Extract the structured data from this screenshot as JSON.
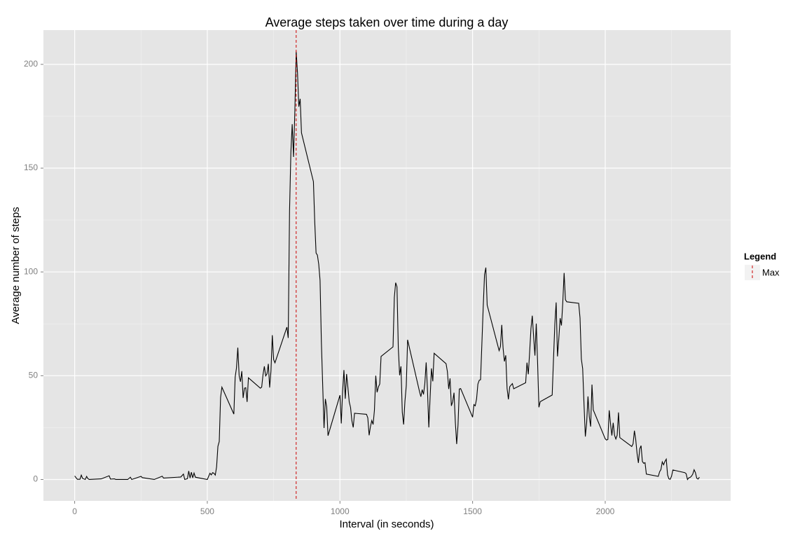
{
  "chart_data": {
    "type": "line",
    "title": "Average steps taken over time during a day",
    "x_label": "Interval (in seconds)",
    "y_label": "Average number of steps",
    "x": [
      0,
      10,
      20,
      25,
      30,
      40,
      45,
      50,
      55,
      100,
      130,
      135,
      150,
      155,
      200,
      210,
      215,
      250,
      255,
      300,
      330,
      335,
      400,
      410,
      415,
      425,
      430,
      435,
      440,
      445,
      450,
      455,
      500,
      510,
      515,
      520,
      525,
      530,
      535,
      540,
      545,
      550,
      555,
      600,
      605,
      610,
      615,
      620,
      625,
      630,
      635,
      640,
      645,
      650,
      655,
      700,
      705,
      710,
      715,
      720,
      725,
      730,
      735,
      740,
      745,
      750,
      755,
      800,
      805,
      810,
      815,
      820,
      825,
      830,
      835,
      840,
      845,
      850,
      855,
      900,
      905,
      910,
      915,
      920,
      925,
      930,
      935,
      940,
      945,
      950,
      955,
      1000,
      1005,
      1010,
      1015,
      1020,
      1025,
      1030,
      1035,
      1040,
      1045,
      1050,
      1055,
      1100,
      1105,
      1110,
      1115,
      1120,
      1125,
      1130,
      1135,
      1140,
      1145,
      1150,
      1155,
      1200,
      1205,
      1210,
      1215,
      1220,
      1225,
      1230,
      1235,
      1240,
      1245,
      1250,
      1255,
      1300,
      1305,
      1310,
      1315,
      1320,
      1325,
      1330,
      1335,
      1340,
      1345,
      1350,
      1355,
      1400,
      1405,
      1410,
      1415,
      1420,
      1425,
      1430,
      1435,
      1440,
      1445,
      1450,
      1455,
      1500,
      1505,
      1510,
      1515,
      1520,
      1525,
      1530,
      1535,
      1540,
      1545,
      1550,
      1555,
      1600,
      1605,
      1610,
      1615,
      1620,
      1625,
      1630,
      1635,
      1640,
      1645,
      1650,
      1655,
      1700,
      1705,
      1710,
      1715,
      1720,
      1725,
      1730,
      1735,
      1740,
      1745,
      1750,
      1755,
      1800,
      1805,
      1810,
      1815,
      1820,
      1825,
      1830,
      1835,
      1840,
      1845,
      1850,
      1855,
      1900,
      1905,
      1910,
      1915,
      1920,
      1925,
      1930,
      1935,
      1940,
      1945,
      1950,
      1955,
      2000,
      2005,
      2010,
      2015,
      2020,
      2025,
      2030,
      2035,
      2040,
      2045,
      2050,
      2055,
      2100,
      2105,
      2110,
      2115,
      2120,
      2125,
      2130,
      2135,
      2140,
      2145,
      2150,
      2155,
      2200,
      2205,
      2210,
      2215,
      2220,
      2225,
      2230,
      2235,
      2240,
      2245,
      2250,
      2255,
      2300,
      2305,
      2310,
      2315,
      2320,
      2325,
      2330,
      2335,
      2340,
      2345,
      2350,
      2355
    ],
    "series": [
      {
        "color": "#000000",
        "values": [
          1.7,
          0.1,
          0.1,
          2.1,
          0.5,
          0,
          1.5,
          0.4,
          0,
          0.3,
          1.8,
          0.2,
          0.3,
          0,
          0,
          1.1,
          0,
          1.5,
          0.9,
          0,
          1.6,
          0.7,
          1.2,
          2.6,
          0,
          0.4,
          4.1,
          0.7,
          3.5,
          0.8,
          3.1,
          1.1,
          0,
          3,
          2.2,
          3.3,
          3,
          2.1,
          6.1,
          16,
          18.3,
          39.5,
          44.5,
          31.5,
          49.3,
          53.8,
          63.5,
          50,
          47.1,
          52.2,
          39.3,
          44,
          44.2,
          37.4,
          49,
          44,
          44.5,
          50.5,
          54.5,
          49.9,
          50.9,
          55.7,
          44.3,
          52.3,
          69.5,
          57.8,
          56.2,
          73.4,
          68.2,
          129.4,
          157.5,
          171.2,
          155.4,
          177.3,
          206.2,
          195.9,
          179.6,
          183.4,
          167,
          143.5,
          124,
          109.1,
          108.1,
          103.7,
          96,
          66.2,
          45.2,
          24.8,
          38.8,
          35,
          21.1,
          40.6,
          27,
          42.4,
          52.7,
          38.9,
          50.8,
          44.3,
          37.4,
          34.7,
          28.3,
          25.1,
          31.9,
          31.4,
          29.7,
          21.3,
          25.5,
          28.4,
          26.5,
          33.4,
          50,
          42,
          44.6,
          46,
          59.3,
          63.9,
          87.7,
          94.8,
          92.8,
          63.4,
          50.2,
          54.5,
          32.4,
          26.5,
          37.7,
          45.1,
          67.3,
          42.3,
          39.9,
          43.3,
          41,
          46.2,
          56.4,
          42.8,
          25.1,
          40,
          53.5,
          47.3,
          60.8,
          55.8,
          52,
          43.6,
          48.7,
          35.5,
          37.5,
          41.8,
          27.5,
          17.1,
          26.1,
          43.6,
          43.8,
          30,
          36.1,
          35.5,
          38.8,
          46,
          47.8,
          48.1,
          65.3,
          82.9,
          98.7,
          102.1,
          84,
          62.1,
          64.1,
          74.5,
          63.2,
          56.9,
          59.8,
          43.9,
          38.6,
          44.7,
          45.5,
          46.2,
          43.7,
          46.6,
          56.3,
          50.7,
          61.2,
          72.7,
          78.9,
          68.9,
          59.7,
          75.1,
          56.5,
          34.8,
          37.5,
          40.7,
          58,
          74.7,
          85.3,
          59.3,
          67.8,
          77.7,
          74.2,
          85.3,
          99.5,
          86.6,
          85.6,
          84.9,
          77.8,
          58,
          53.4,
          36.3,
          20.7,
          27.4,
          40,
          30.2,
          25.5,
          45.7,
          33.5,
          19.6,
          19,
          19.3,
          33.3,
          26.8,
          21.2,
          27.3,
          21.3,
          19.5,
          21.3,
          32.3,
          20.2,
          15.9,
          17.2,
          23.5,
          19.2,
          12.5,
          8,
          14.7,
          16.3,
          8.7,
          7.8,
          8.1,
          2.6,
          1.5,
          3.7,
          4.8,
          8.5,
          7.1,
          8.7,
          9.8,
          2.2,
          0.3,
          0.1,
          1.6,
          4.6,
          3.3,
          2.8,
          0,
          0.8,
          1,
          1.6,
          2.6,
          4.7,
          3.3,
          0.6,
          0.2,
          1.1
        ]
      }
    ],
    "vline": {
      "name": "Max",
      "x": 835,
      "color": "#cc0000",
      "dashed": true
    },
    "legend": {
      "title": "Legend",
      "position": "right"
    },
    "xlim": [
      -117.75,
      2472.75
    ],
    "xticks": [
      0,
      500,
      1000,
      1500,
      2000
    ],
    "x_minor_grid": [
      250,
      750,
      1250,
      1750,
      2250
    ],
    "ylim": [
      -10.3,
      216.5
    ],
    "yticks": [
      0,
      50,
      100,
      150,
      200
    ],
    "y_minor_grid": [
      25,
      75,
      125,
      175
    ],
    "grid": true
  }
}
